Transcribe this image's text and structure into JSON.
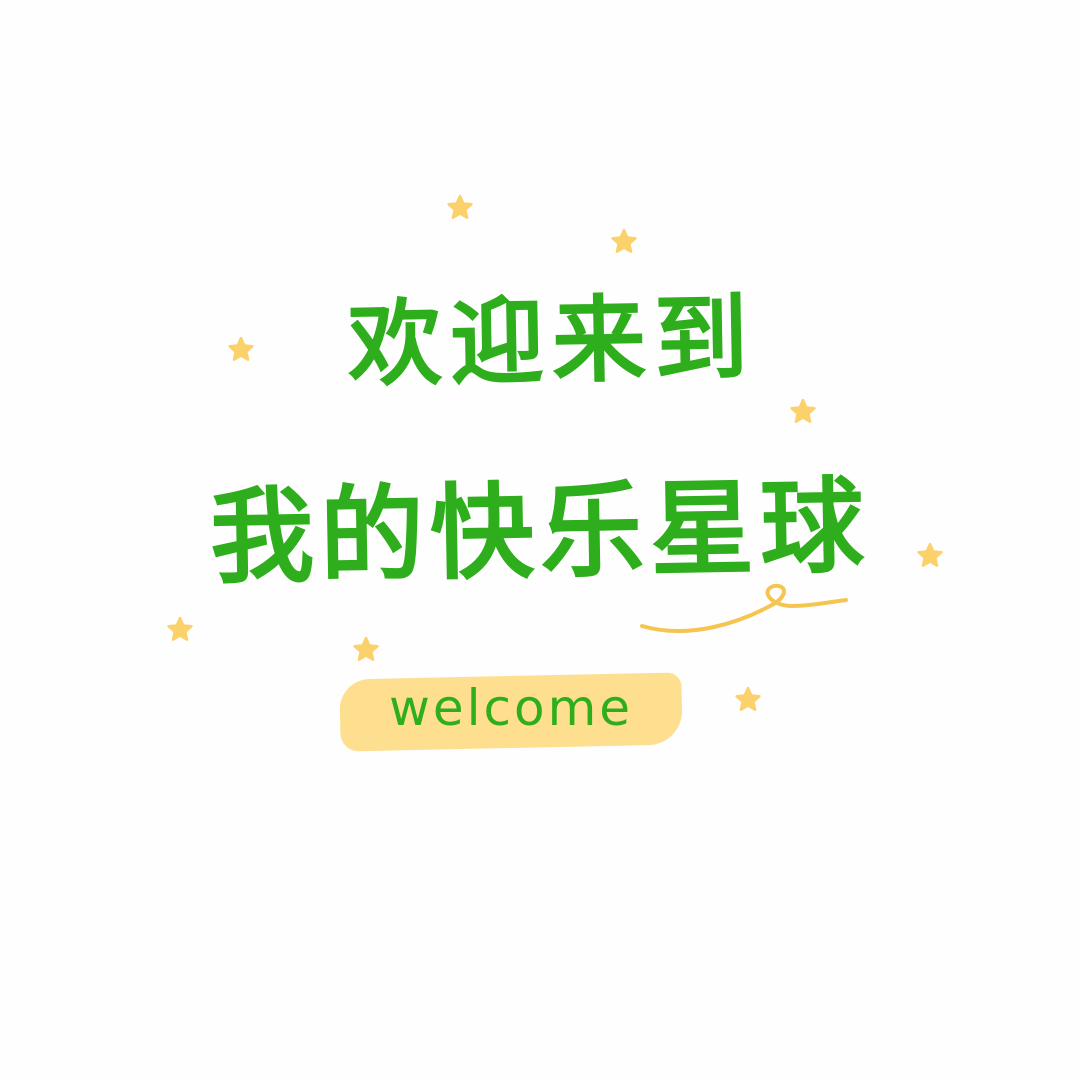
{
  "headline": {
    "line_1": "欢迎来到",
    "line_2": "我的快乐星球"
  },
  "badge": {
    "text": "welcome"
  },
  "decorations": {
    "star_icon": "star-icon",
    "swash_icon": "looped-swash-icon"
  },
  "colors": {
    "background": "#fefefe",
    "text_green": "#2eae1c",
    "star_yellow": "#fbd16b",
    "highlight_yellow": "#fddb83",
    "swash_yellow": "#f6c54f"
  }
}
